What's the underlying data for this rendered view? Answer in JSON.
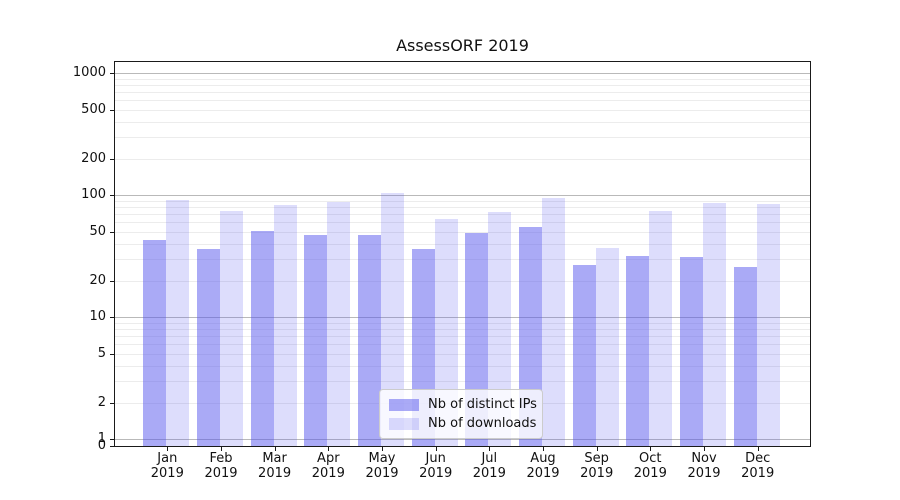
{
  "figure": {
    "background": "#ffffff",
    "text_color": "#111111",
    "axis_color": "#1a1a1a",
    "major_grid_color": "#b9b9b9",
    "minor_grid_color": "#ececec"
  },
  "chart_data": {
    "type": "bar",
    "title": "AssessORF 2019",
    "categories": [
      "Jan 2019",
      "Feb 2019",
      "Mar 2019",
      "Apr 2019",
      "May 2019",
      "Jun 2019",
      "Jul 2019",
      "Aug 2019",
      "Sep 2019",
      "Oct 2019",
      "Nov 2019",
      "Dec 2019"
    ],
    "series": [
      {
        "name": "Nb of distinct IPs",
        "color": "rgba(85,85,238,0.5)",
        "values": [
          43,
          36,
          51,
          47,
          47,
          36,
          49,
          55,
          27,
          32,
          31,
          26
        ]
      },
      {
        "name": "Nb of downloads",
        "color": "rgba(85,85,238,0.2)",
        "values": [
          92,
          75,
          84,
          88,
          105,
          64,
          73,
          96,
          37,
          74,
          86,
          85
        ]
      }
    ],
    "yscale": "symlog",
    "yticks": [
      0,
      1,
      2,
      5,
      10,
      20,
      50,
      100,
      200,
      500,
      1000
    ],
    "ylim": [
      0,
      1270
    ],
    "xlabel": "",
    "ylabel": "",
    "grid": true,
    "legend_position": "lower center"
  }
}
